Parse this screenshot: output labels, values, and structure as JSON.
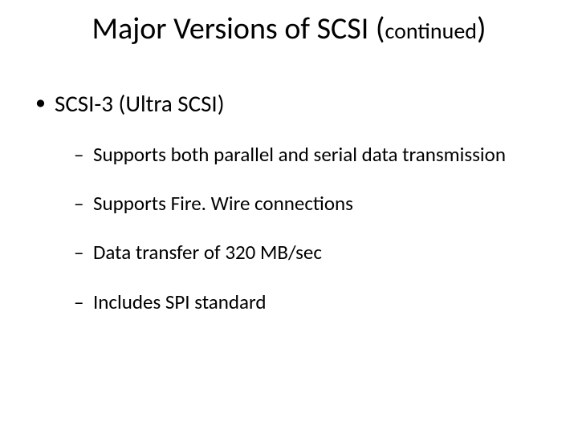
{
  "slide": {
    "title_main": "Major Versions of SCSI (",
    "title_cont": "continued",
    "title_close": ")",
    "bullets": {
      "item0": {
        "text": "SCSI-3 (Ultra SCSI)",
        "sub": {
          "s0": "Supports both parallel and serial data transmission",
          "s1": "Supports Fire. Wire connections",
          "s2": "Data transfer of 320 MB/sec",
          "s3": "Includes SPI standard"
        }
      }
    }
  },
  "style": {
    "background_color": "#ffffff",
    "text_color": "#000000",
    "title_fontsize_main": 38,
    "title_fontsize_cont": 28,
    "level1_fontsize": 29,
    "level2_fontsize": 25,
    "font_family": "Calibri"
  }
}
